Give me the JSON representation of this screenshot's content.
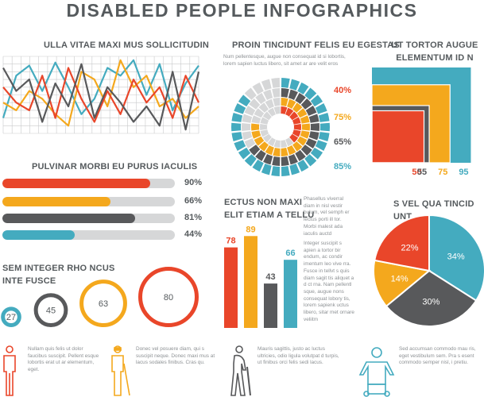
{
  "colors": {
    "red": "#e9462a",
    "orange": "#f4a81d",
    "gray": "#58595b",
    "teal": "#44abbf",
    "light": "#d6d7d8",
    "text": "#555a5d"
  },
  "title": "DISABLED PEOPLE INFOGRAPHICS",
  "line_section": {
    "title": "ULLA VITAE MAXI MUS SOLLICITUDIN"
  },
  "ring_section": {
    "title": "PROIN TINCIDUNT FELIS EU EGESTAS",
    "text": "Num pellentesque, augue non consequat id si lobortis, lorem sapien luctus libero, sit amet ar are velit eros"
  },
  "square_section": {
    "title_lines": [
      "UT TORTOR AUGUE",
      "ELEMENTUM ID N"
    ]
  },
  "bars_section": {
    "title": "PULVINAR MORBI EU PURUS IACULIS"
  },
  "column_section": {
    "title_lines": [
      "ECTUS NON MAXI",
      "ELIT ETIAM A TELLU"
    ],
    "text1": "Phasellus viverral diam in nisl vestir bulum, vel semph er lectus porti ill tor. Morbi malest ada iaculis auctd",
    "text2": "Integer suscipit s apien a tortor bir endum, ac condir imentum leo vive rra. Fusce in tellvt s quis diam sagit tis aliquet a d ct rna. Nam pellentl sque, augue nons consequat lobory tis, lorem sapienk uctus libero, sitar met ornare veliitm"
  },
  "pie_section": {
    "title": "S VEL QUA TINCID UNT"
  },
  "circles_section": {
    "title_lines": [
      "SEM INTEGER RHO NCUS",
      "INTE FUSCE"
    ]
  },
  "people": [
    {
      "icon": "standing-person-icon",
      "text": "Nullam quis felis ut dolor faucibus suscipit. Pellent esque lobortis erat ut ar elementum, eget."
    },
    {
      "icon": "blind-person-icon",
      "text": "Donec vel posuere diam, qui s suscipit neque. Donec maxi mus at lacus sodales finibus. Cras qu."
    },
    {
      "icon": "elderly-person-icon",
      "text": "Mauris sagittis, justo ac luctus ultricies, odio ligula volutpat d turpis, ut finibus orci felis sedi lacus."
    },
    {
      "icon": "wheelchair-person-icon",
      "text": "Sed accumsan commodo mau ris, eget vestibulum sem. Pra s esent commodo semper nisl, i pretiu."
    }
  ],
  "chart_data": [
    {
      "type": "line",
      "title": "ULLA VITAE MAXI MUS SOLLICITUDIN",
      "x": [
        0,
        1,
        2,
        3,
        4,
        5,
        6,
        7,
        8,
        9,
        10,
        11,
        12,
        13,
        14,
        15
      ],
      "ylim": [
        0,
        100
      ],
      "grid": true,
      "series": [
        {
          "color": "#44abbf",
          "values": [
            20,
            75,
            88,
            55,
            92,
            60,
            25,
            45,
            85,
            75,
            95,
            50,
            90,
            30,
            65,
            88
          ]
        },
        {
          "color": "#f4a81d",
          "values": [
            40,
            30,
            55,
            45,
            25,
            10,
            80,
            70,
            35,
            95,
            60,
            75,
            35,
            45,
            20,
            35
          ]
        },
        {
          "color": "#e9462a",
          "values": [
            60,
            40,
            30,
            75,
            20,
            85,
            45,
            15,
            55,
            25,
            70,
            40,
            60,
            20,
            75,
            40
          ]
        },
        {
          "color": "#58595b",
          "values": [
            85,
            55,
            70,
            15,
            65,
            35,
            90,
            20,
            60,
            40,
            15,
            35,
            10,
            80,
            5,
            80
          ]
        }
      ]
    },
    {
      "type": "pie",
      "subtype": "concentric-segmented-rings",
      "title": "PROIN TINCIDUNT FELIS EU EGESTAS",
      "rings_from_outer": [
        {
          "value": 85,
          "label": "85%",
          "color": "#44abbf"
        },
        {
          "value": 65,
          "label": "65%",
          "color": "#58595b"
        },
        {
          "value": 75,
          "label": "75%",
          "color": "#f4a81d"
        },
        {
          "value": 40,
          "label": "40%",
          "color": "#e9462a"
        }
      ]
    },
    {
      "type": "area",
      "subtype": "nested-squares",
      "title": "UT TORTOR AUGUE ELEMENTUM ID N",
      "squares": [
        {
          "value": 95,
          "label": "95",
          "color": "#44abbf"
        },
        {
          "value": 75,
          "label": "75",
          "color": "#f4a81d"
        },
        {
          "value": 55,
          "label": "55",
          "color": "#58595b"
        },
        {
          "value": 50,
          "label": "50",
          "color": "#e9462a"
        }
      ]
    },
    {
      "type": "bar",
      "orientation": "horizontal",
      "title": "PULVINAR MORBI EU PURUS IACULIS",
      "xlim": [
        0,
        100
      ],
      "bars": [
        {
          "value": 90,
          "label": "90%",
          "color": "#e9462a"
        },
        {
          "value": 66,
          "label": "66%",
          "color": "#f4a81d"
        },
        {
          "value": 81,
          "label": "81%",
          "color": "#58595b"
        },
        {
          "value": 44,
          "label": "44%",
          "color": "#44abbf"
        }
      ]
    },
    {
      "type": "bar",
      "title": "ECTUS NON MAXI ELIT ETIAM A TELLU",
      "ylim": [
        0,
        100
      ],
      "bars": [
        {
          "value": 78,
          "label": "78",
          "color": "#e9462a"
        },
        {
          "value": 89,
          "label": "89",
          "color": "#f4a81d"
        },
        {
          "value": 43,
          "label": "43",
          "color": "#58595b"
        },
        {
          "value": 66,
          "label": "66",
          "color": "#44abbf"
        }
      ]
    },
    {
      "type": "pie",
      "title": "S VEL QUA TINCID UNT",
      "slices": [
        {
          "value": 34,
          "label": "34%",
          "color": "#44abbf"
        },
        {
          "value": 30,
          "label": "30%",
          "color": "#58595b"
        },
        {
          "value": 14,
          "label": "14%",
          "color": "#f4a81d"
        },
        {
          "value": 22,
          "label": "22%",
          "color": "#e9462a"
        }
      ]
    },
    {
      "type": "scatter",
      "subtype": "bubbles",
      "title": "SEM INTEGER RHO NCUS INTE FUSCE",
      "bubbles": [
        {
          "value": 27,
          "label": "27",
          "color": "#44abbf"
        },
        {
          "value": 45,
          "label": "45",
          "color": "#58595b"
        },
        {
          "value": 63,
          "label": "63",
          "color": "#f4a81d"
        },
        {
          "value": 80,
          "label": "80",
          "color": "#e9462a"
        }
      ]
    }
  ]
}
